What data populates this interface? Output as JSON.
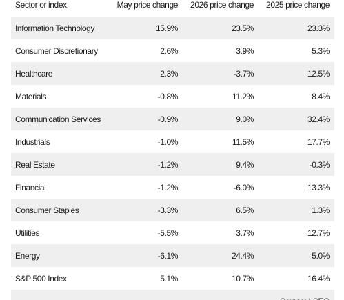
{
  "table": {
    "header": [
      "Sector or index",
      "May price change",
      "2026 price change",
      "2025 price change"
    ],
    "rows": [
      [
        "Information Technology",
        "15.9%",
        "23.5%",
        "23.3%"
      ],
      [
        "Consumer Discretionary",
        "2.6%",
        "3.9%",
        "5.3%"
      ],
      [
        "Healthcare",
        "2.3%",
        "-3.7%",
        "12.5%"
      ],
      [
        "Materials",
        "-0.8%",
        "11.2%",
        "8.4%"
      ],
      [
        "Communication Services",
        "-0.9%",
        "9.0%",
        "32.4%"
      ],
      [
        "Industrials",
        "-1.0%",
        "11.5%",
        "17.7%"
      ],
      [
        "Real Estate",
        "-1.2%",
        "9.4%",
        "-0.3%"
      ],
      [
        "Financial",
        "-1.2%",
        "-6.0%",
        "13.3%"
      ],
      [
        "Consumer Staples",
        "-3.3%",
        "6.5%",
        "1.3%"
      ],
      [
        "Utilities",
        "-5.5%",
        "3.7%",
        "12.7%"
      ],
      [
        "Energy",
        "-6.1%",
        "24.4%",
        "5.0%"
      ],
      [
        "S&P 500 Index",
        "5.1%",
        "10.7%",
        "16.4%"
      ]
    ],
    "source": "Source: LSEG"
  }
}
